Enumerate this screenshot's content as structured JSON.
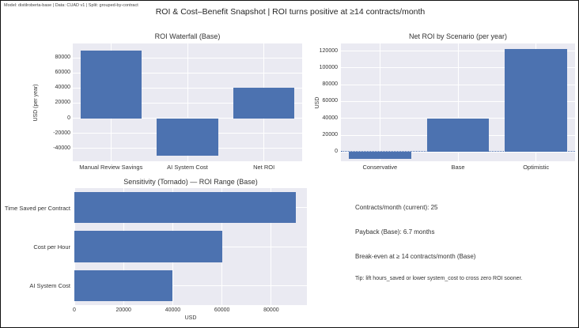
{
  "header": {
    "meta": "Model: distilroberta-base | Data: CUAD v1 | Split: grouped-by-contract",
    "title": "ROI & Cost–Benefit Snapshot | ROI turns positive at ≥14 contracts/month"
  },
  "colors": {
    "bar": "#4C72B0",
    "plot_bg": "#EAEAF2",
    "grid": "#FFFFFF",
    "text": "#333333",
    "zero_line": "#4C72B0"
  },
  "chart_data": [
    {
      "id": "waterfall",
      "type": "bar",
      "title": "ROI Waterfall (Base)",
      "ylabel": "USD (per year)",
      "categories": [
        "Manual Review Savings",
        "AI System Cost",
        "Net ROI"
      ],
      "values": [
        90000,
        -50000,
        40000
      ],
      "yticks": [
        80000,
        60000,
        40000,
        20000,
        0,
        -20000,
        -40000
      ],
      "ylim": [
        -57000,
        99000
      ],
      "grid": true,
      "legend": "none"
    },
    {
      "id": "scenario",
      "type": "bar",
      "title": "Net ROI by Scenario (per year)",
      "ylabel": "USD",
      "categories": [
        "Conservative",
        "Base",
        "Optimistic"
      ],
      "values": [
        -8000,
        40000,
        122000
      ],
      "yticks": [
        120000,
        100000,
        80000,
        60000,
        40000,
        20000,
        0
      ],
      "ylim": [
        -11000,
        129000
      ],
      "zero_line": "dotted",
      "grid": true,
      "legend": "none"
    },
    {
      "id": "tornado",
      "type": "barh",
      "title": "Sensitivity (Tornado) — ROI Range (Base)",
      "xlabel": "USD",
      "categories": [
        "Time Saved per Contract",
        "Cost per Hour",
        "AI System Cost"
      ],
      "values": [
        90000,
        60000,
        40000
      ],
      "xticks": [
        0,
        20000,
        40000,
        60000,
        80000
      ],
      "xlim": [
        0,
        94500
      ],
      "grid": true,
      "legend": "none"
    }
  ],
  "notes": {
    "lines": [
      "Contracts/month (current): 25",
      "Payback (Base): 6.7 months",
      "Break-even at ≥ 14 contracts/month (Base)",
      "Tip: lift hours_saved or lower system_cost to cross zero ROI sooner."
    ]
  }
}
